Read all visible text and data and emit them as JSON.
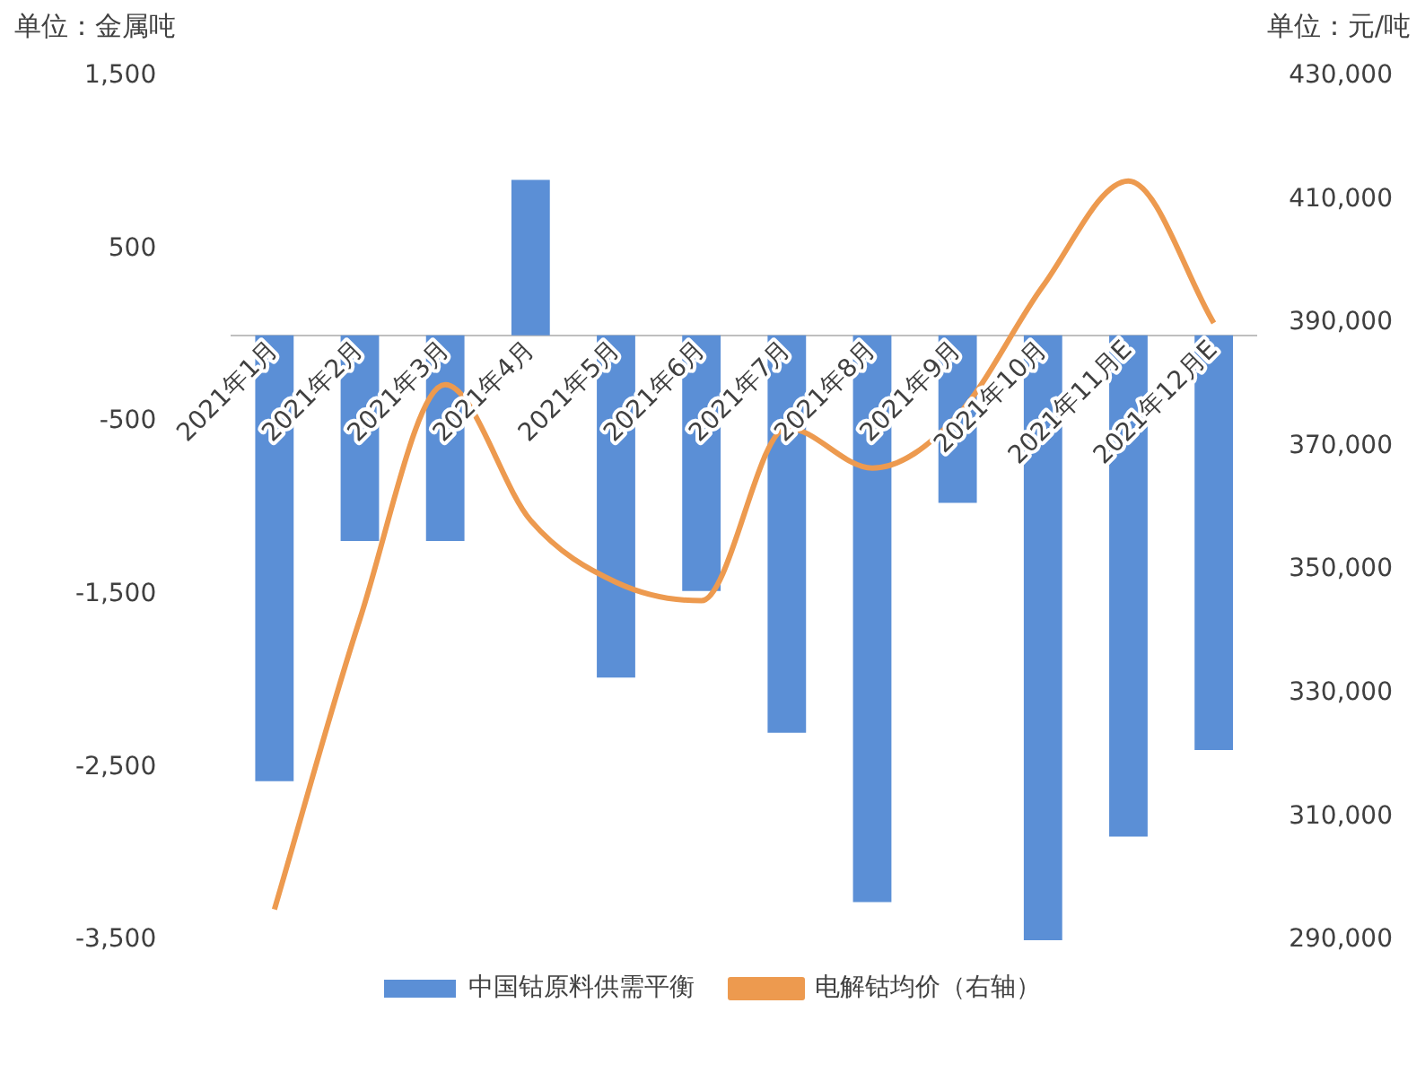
{
  "chart_data": {
    "type": "bar",
    "ylabel": "单位：金属吨",
    "y2label": "单位：元/吨",
    "categories": [
      "2021年1月",
      "2021年2月",
      "2021年3月",
      "2021年4月",
      "2021年5月",
      "2021年6月",
      "2021年7月",
      "2021年8月",
      "2021年9月",
      "2021年10月",
      "2021年11月E",
      "2021年12月E"
    ],
    "series": [
      {
        "name": "中国钴原料供需平衡",
        "color": "#5b8fd6",
        "values": [
          -2580,
          -1190,
          -1190,
          900,
          -1980,
          -1480,
          -2300,
          -3280,
          -970,
          -3500,
          -2900,
          -2400
        ]
      },
      {
        "name": "电解钴均价（右轴）",
        "type": "line",
        "axis": "y2",
        "color": "#ed9a4f",
        "values": [
          295000,
          342000,
          380000,
          358000,
          348000,
          345000,
          373000,
          366500,
          375000,
          396000,
          413000,
          390000
        ]
      }
    ],
    "ylim": [
      -3500,
      1500
    ],
    "yticks": [
      {
        "value": -3500,
        "label": "-3,500"
      },
      {
        "value": -2500,
        "label": "-2,500"
      },
      {
        "value": -1500,
        "label": "-1,500"
      },
      -500,
      500,
      {
        "value": 1500,
        "label": "1,500"
      }
    ],
    "y2lim": [
      290000,
      430000
    ],
    "y2ticks": [
      {
        "value": 290000,
        "label": "290,000"
      },
      {
        "value": 310000,
        "label": "310,000"
      },
      {
        "value": 330000,
        "label": "330,000"
      },
      {
        "value": 350000,
        "label": "350,000"
      },
      {
        "value": 370000,
        "label": "370,000"
      },
      {
        "value": 390000,
        "label": "390,000"
      },
      {
        "value": 410000,
        "label": "410,000"
      },
      {
        "value": 430000,
        "label": "430,000"
      }
    ],
    "grid": false,
    "legend": "bottom",
    "marker": "none",
    "line_style": "solid"
  }
}
